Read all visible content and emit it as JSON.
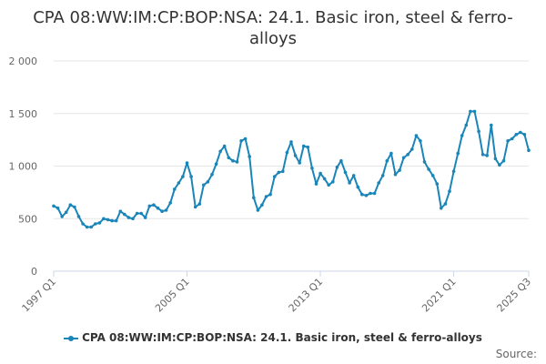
{
  "title": "CPA 08:WW:IM:CP:BOP:NSA: 24.1. Basic iron, steel & ferro-alloys",
  "credits": "Source:",
  "colors": {
    "series": "#1a85b8",
    "grid": "#e6e6e6",
    "axis_text": "#666666"
  },
  "chart_data": {
    "type": "line",
    "title": "CPA 08:WW:IM:CP:BOP:NSA: 24.1. Basic iron, steel & ferro-alloys",
    "xlabel": "",
    "ylabel": "",
    "ylim": [
      0,
      2000
    ],
    "y_ticks": [
      0,
      500,
      1000,
      1500,
      2000
    ],
    "y_tick_labels": [
      "0",
      "500",
      "1 000",
      "1 500",
      "2 000"
    ],
    "x_tick_labels": [
      "1997 Q1",
      "2005 Q1",
      "2013 Q1",
      "2021 Q1",
      "2025 Q3"
    ],
    "x_tick_index": [
      0,
      32,
      64,
      96,
      114
    ],
    "grid": true,
    "legend_position": "bottom",
    "series": [
      {
        "name": "CPA 08:WW:IM:CP:BOP:NSA: 24.1. Basic iron, steel & ferro-alloys",
        "values": [
          620,
          600,
          520,
          560,
          630,
          610,
          520,
          450,
          420,
          420,
          450,
          460,
          500,
          490,
          480,
          480,
          570,
          540,
          510,
          500,
          550,
          550,
          510,
          620,
          630,
          600,
          570,
          580,
          650,
          780,
          840,
          900,
          1030,
          900,
          610,
          640,
          820,
          850,
          920,
          1020,
          1140,
          1190,
          1080,
          1050,
          1040,
          1240,
          1260,
          1090,
          700,
          580,
          630,
          710,
          730,
          900,
          940,
          950,
          1130,
          1230,
          1100,
          1030,
          1190,
          1180,
          980,
          830,
          930,
          880,
          820,
          850,
          990,
          1050,
          940,
          840,
          910,
          800,
          730,
          720,
          740,
          740,
          840,
          910,
          1050,
          1120,
          920,
          960,
          1080,
          1110,
          1160,
          1290,
          1240,
          1040,
          970,
          910,
          830,
          600,
          640,
          760,
          950,
          1120,
          1290,
          1390,
          1520,
          1520,
          1330,
          1110,
          1100,
          1390,
          1070,
          1010,
          1050,
          1240,
          1260,
          1300,
          1320,
          1300,
          1150
        ]
      }
    ]
  }
}
